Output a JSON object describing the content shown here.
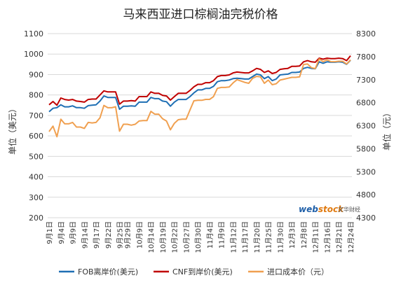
{
  "chart_data": {
    "type": "line",
    "title": "马来西亚进口棕榈油完税价格",
    "ylabel_left": "单位（美元）",
    "ylabel_right": "单位（元）",
    "ylim_left": [
      200,
      1100
    ],
    "yticks_left": [
      "200",
      "300",
      "400",
      "500",
      "600",
      "700",
      "800",
      "900",
      "1000",
      "1100"
    ],
    "ylim_right": [
      4300,
      8300
    ],
    "yticks_right": [
      "4300",
      "4800",
      "5300",
      "5800",
      "6300",
      "6800",
      "7300",
      "7800",
      "8300"
    ],
    "grid": true,
    "legend_position": "bottom",
    "x": [
      "9月1日",
      "9月2日",
      "9月3日",
      "9月4日",
      "9月7日",
      "9月8日",
      "9月9日",
      "9月10日",
      "9月11日",
      "9月14日",
      "9月15日",
      "9月16日",
      "9月17日",
      "9月18日",
      "9月21日",
      "9月22日",
      "9月23日",
      "9月24日",
      "9月25日",
      "9月28日",
      "9月29日",
      "9月30日",
      "10月8日",
      "10月9日",
      "10月12日",
      "10月13日",
      "10月14日",
      "10月15日",
      "10月16日",
      "10月19日",
      "10月20日",
      "10月21日",
      "10月22日",
      "10月23日",
      "10月26日",
      "10月27日",
      "10月28日",
      "10月29日",
      "10月30日",
      "11月2日",
      "11月3日",
      "11月4日",
      "11月5日",
      "11月6日",
      "11月9日",
      "11月10日",
      "11月11日",
      "11月12日",
      "11月13日",
      "11月16日",
      "11月17日",
      "11月18日",
      "11月19日",
      "11月20日",
      "11月23日",
      "11月24日",
      "11月25日",
      "11月26日",
      "11月27日",
      "11月30日",
      "12月1日",
      "12月2日",
      "12月3日",
      "12月4日",
      "12月7日",
      "12月8日",
      "12月9日",
      "12月10日",
      "12月11日",
      "12月14日",
      "12月15日",
      "12月16日",
      "12月17日",
      "12月18日",
      "12月21日",
      "12月22日",
      "12月23日",
      "12月24日"
    ],
    "xtick_labels": [
      "9月1日",
      "9月4日",
      "9月9日",
      "9月14日",
      "9月17日",
      "9月22日",
      "9月25日",
      "9月29日",
      "10月9日",
      "10月14日",
      "10月19日",
      "10月22日",
      "10月27日",
      "10月30日",
      "11月4日",
      "11月9日",
      "11月12日",
      "11月17日",
      "11月20日",
      "11月25日",
      "11月30日",
      "12月3日",
      "12月8日",
      "12月11日",
      "12月16日",
      "12月21日",
      "12月24日"
    ],
    "series": [
      {
        "name": "FOB离岸价(美元)",
        "color": "#1f6fb4",
        "axis": "left",
        "values": [
          718,
          735,
          738,
          752,
          742,
          742,
          747,
          738,
          738,
          735,
          748,
          750,
          752,
          770,
          795,
          788,
          788,
          788,
          730,
          745,
          745,
          747,
          745,
          765,
          765,
          765,
          788,
          782,
          782,
          770,
          767,
          745,
          765,
          778,
          778,
          778,
          792,
          810,
          825,
          825,
          832,
          832,
          842,
          865,
          870,
          870,
          873,
          880,
          882,
          880,
          878,
          878,
          890,
          902,
          898,
          880,
          890,
          870,
          878,
          898,
          900,
          902,
          910,
          910,
          912,
          930,
          935,
          930,
          928,
          962,
          955,
          962,
          960,
          960,
          962,
          960,
          950,
          970
        ]
      },
      {
        "name": "CNF到岸价(美元)",
        "color": "#c00000",
        "axis": "left",
        "values": [
          752,
          768,
          750,
          785,
          778,
          775,
          778,
          770,
          768,
          765,
          778,
          780,
          780,
          800,
          820,
          815,
          815,
          815,
          755,
          770,
          770,
          772,
          770,
          792,
          792,
          792,
          815,
          808,
          808,
          798,
          795,
          775,
          792,
          808,
          808,
          808,
          822,
          840,
          852,
          852,
          860,
          860,
          870,
          890,
          895,
          895,
          898,
          908,
          912,
          910,
          908,
          908,
          918,
          930,
          925,
          910,
          918,
          905,
          910,
          925,
          928,
          930,
          940,
          940,
          942,
          962,
          968,
          962,
          960,
          980,
          975,
          980,
          978,
          978,
          980,
          978,
          968,
          992
        ]
      },
      {
        "name": "进口成本价（元）",
        "color": "#f0a050",
        "axis": "right",
        "values": [
          6170,
          6290,
          6060,
          6440,
          6340,
          6340,
          6370,
          6270,
          6270,
          6240,
          6370,
          6360,
          6370,
          6470,
          6740,
          6690,
          6690,
          6710,
          6180,
          6330,
          6330,
          6310,
          6330,
          6400,
          6410,
          6410,
          6610,
          6550,
          6550,
          6450,
          6400,
          6210,
          6350,
          6430,
          6440,
          6440,
          6640,
          6840,
          6850,
          6850,
          6870,
          6870,
          6930,
          7110,
          7130,
          7130,
          7140,
          7230,
          7300,
          7270,
          7240,
          7220,
          7330,
          7370,
          7360,
          7220,
          7290,
          7190,
          7210,
          7290,
          7310,
          7330,
          7350,
          7350,
          7360,
          7630,
          7640,
          7560,
          7540,
          7750,
          7690,
          7730,
          7690,
          7690,
          7700,
          7700,
          7640,
          7730
        ]
      }
    ]
  },
  "watermark": {
    "brand": "webstock",
    "brand_sub": "文华财经"
  }
}
